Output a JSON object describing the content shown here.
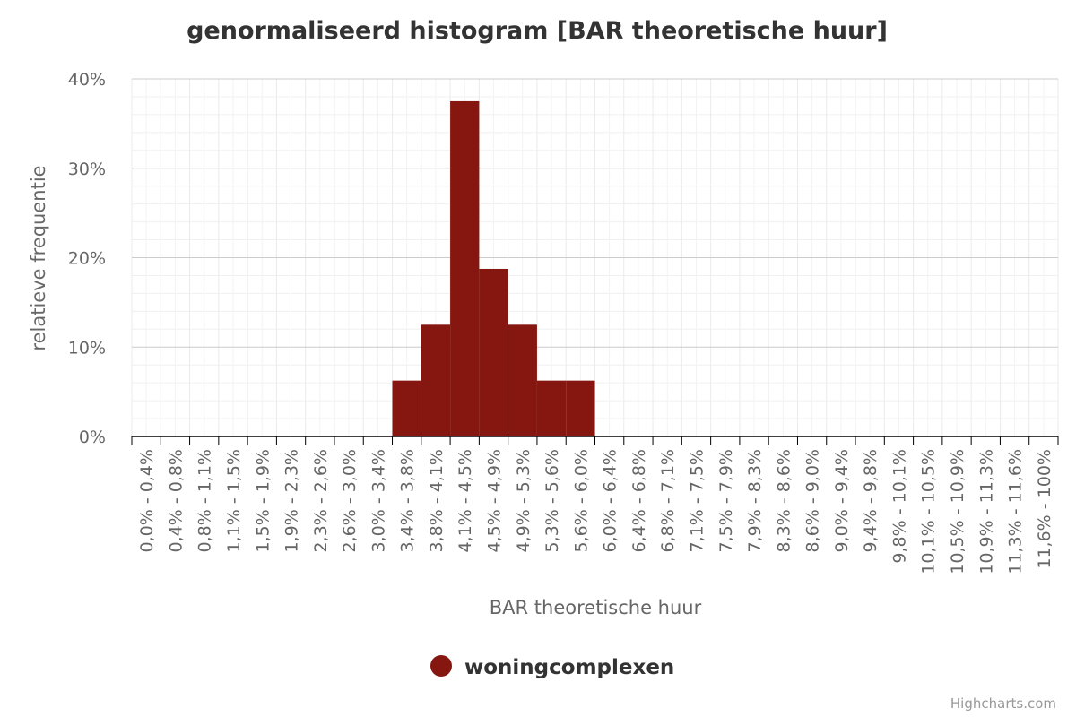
{
  "chart_data": {
    "type": "bar",
    "title": "genormaliseerd histogram [BAR theoretische huur]",
    "xlabel": "BAR theoretische huur",
    "ylabel": "relatieve frequentie",
    "ylim": [
      0,
      40
    ],
    "yticks": [
      "0%",
      "10%",
      "20%",
      "30%",
      "40%"
    ],
    "categories": [
      "0,0% - 0,4%",
      "0,4% - 0,8%",
      "0,8% - 1,1%",
      "1,1% - 1,5%",
      "1,5% - 1,9%",
      "1,9% - 2,3%",
      "2,3% - 2,6%",
      "2,6% - 3,0%",
      "3,0% - 3,4%",
      "3,4% - 3,8%",
      "3,8% - 4,1%",
      "4,1% - 4,5%",
      "4,5% - 4,9%",
      "4,9% - 5,3%",
      "5,3% - 5,6%",
      "5,6% - 6,0%",
      "6,0% - 6,4%",
      "6,4% - 6,8%",
      "6,8% - 7,1%",
      "7,1% - 7,5%",
      "7,5% - 7,9%",
      "7,9% - 8,3%",
      "8,3% - 8,6%",
      "8,6% - 9,0%",
      "9,0% - 9,4%",
      "9,4% - 9,8%",
      "9,8% - 10,1%",
      "10,1% - 10,5%",
      "10,5% - 10,9%",
      "10,9% - 11,3%",
      "11,3% - 11,6%",
      "11,6% - 100%"
    ],
    "series": [
      {
        "name": "woningcomplexen",
        "color": "#861710",
        "values": [
          0,
          0,
          0,
          0,
          0,
          0,
          0,
          0,
          0,
          6.25,
          12.5,
          37.5,
          18.75,
          12.5,
          6.25,
          6.25,
          0,
          0,
          0,
          0,
          0,
          0,
          0,
          0,
          0,
          0,
          0,
          0,
          0,
          0,
          0,
          0
        ]
      }
    ],
    "legend": "bottom-center",
    "grid": true
  },
  "credits": "Highcharts.com"
}
